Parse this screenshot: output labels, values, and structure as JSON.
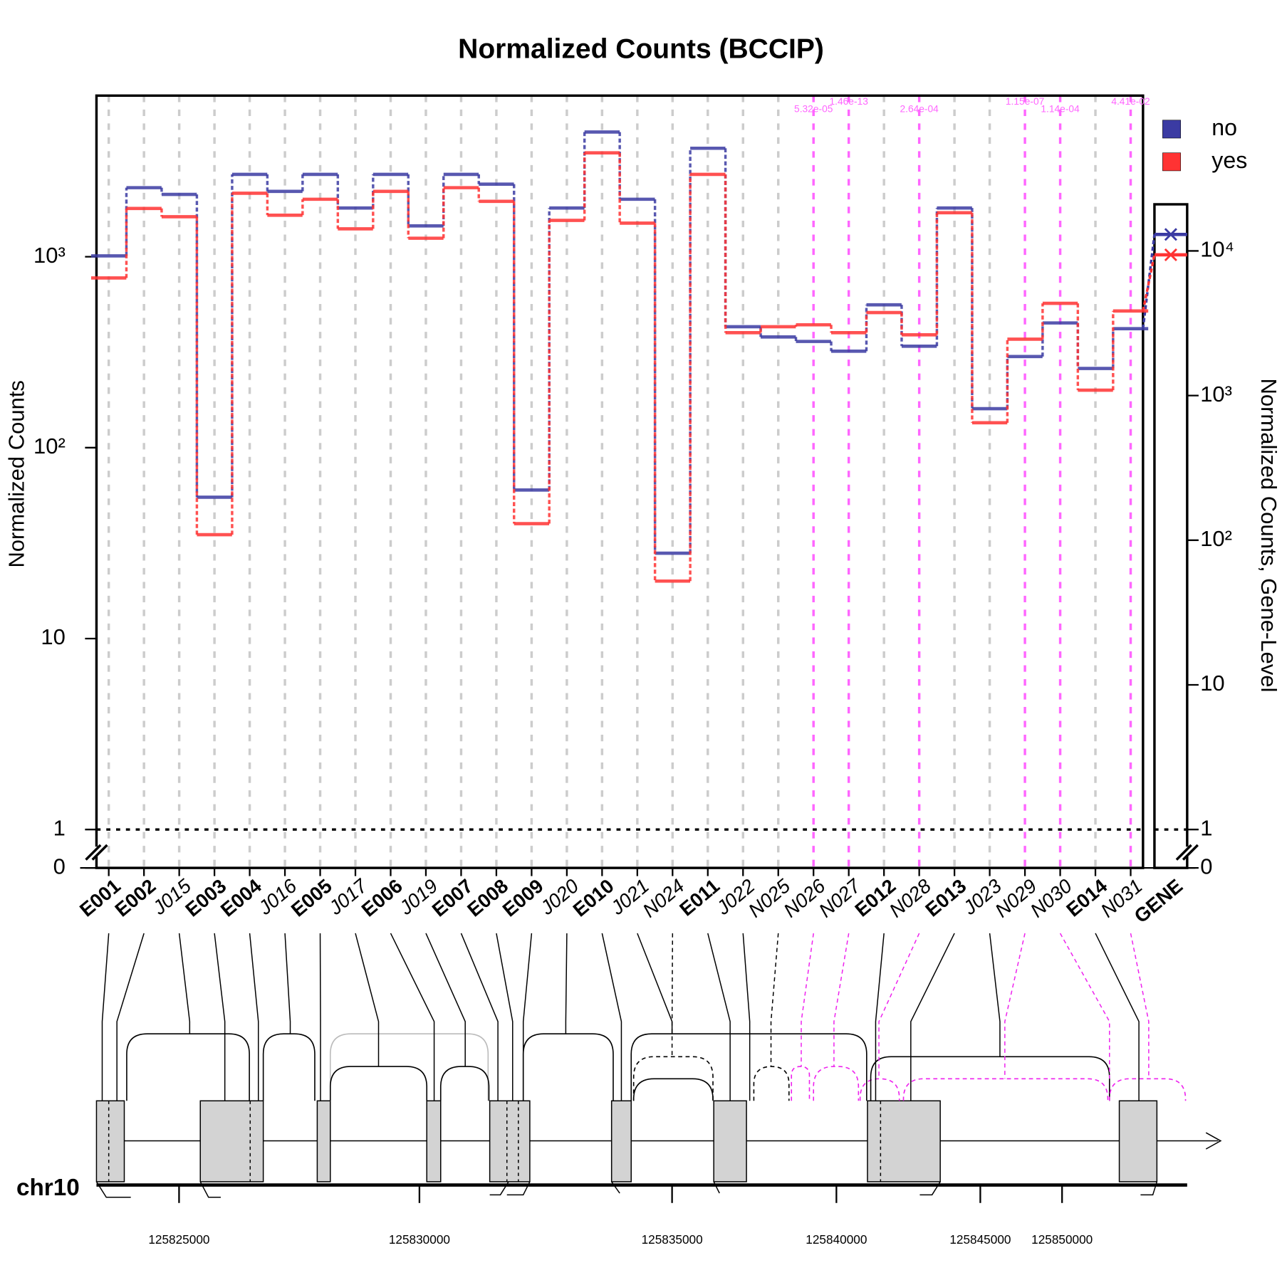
{
  "chart_data": {
    "type": "step",
    "title": "Normalized Counts (BCCIP)",
    "y_label": "Normalized Counts",
    "y2_label": "Normalized Counts, Gene-Level",
    "log_scale": true,
    "grid": true,
    "legend": "topright",
    "categories": [
      "E001",
      "E002",
      "J015",
      "E003",
      "E004",
      "J016",
      "E005",
      "J017",
      "E006",
      "J019",
      "E007",
      "E008",
      "E009",
      "J020",
      "E010",
      "J021",
      "N024",
      "E011",
      "J022",
      "N025",
      "N026",
      "N027",
      "E012",
      "N028",
      "E013",
      "J023",
      "N029",
      "N030",
      "E014",
      "N031"
    ],
    "series": [
      {
        "name": "no",
        "color": "#3b3ba3",
        "values": [
          1010,
          2300,
          2120,
          55,
          2700,
          2200,
          2700,
          1800,
          2700,
          1450,
          2700,
          2400,
          60,
          1800,
          4500,
          2000,
          28,
          3700,
          430,
          380,
          360,
          320,
          560,
          340,
          1800,
          160,
          300,
          450,
          260,
          420
        ],
        "gene_value": 13000
      },
      {
        "name": "yes",
        "color": "#ff3333",
        "values": [
          774,
          1790,
          1620,
          35,
          2150,
          1650,
          2000,
          1400,
          2200,
          1250,
          2300,
          1950,
          40,
          1550,
          3500,
          1500,
          20,
          2700,
          400,
          430,
          440,
          400,
          510,
          390,
          1700,
          135,
          370,
          570,
          200,
          520
        ],
        "gene_value": 9400
      }
    ],
    "gene_label": "GENE",
    "ylim": [
      1,
      6980
    ],
    "yticks": [
      0,
      1,
      10,
      {
        "value": 100,
        "label": "10²"
      },
      {
        "value": 1000,
        "label": "10³"
      }
    ],
    "y2lim": [
      1,
      21000
    ],
    "y2ticks": [
      0,
      1,
      10,
      {
        "value": 100,
        "label": "10²"
      },
      {
        "value": 1000,
        "label": "10³"
      },
      {
        "value": 10000,
        "label": "10⁴"
      }
    ],
    "highlight_color": "#ff66ff",
    "pvalues": [
      {
        "category": "N026",
        "label": "5.32e-05"
      },
      {
        "category": "N027",
        "label": "1.46e-13"
      },
      {
        "category": "N028",
        "label": "2.64e-04"
      },
      {
        "category": "N029",
        "label": "1.15e-07"
      },
      {
        "category": "N030",
        "label": "1.14e-04"
      },
      {
        "category": "N031",
        "label": "4.41e-02"
      }
    ],
    "chromosome": "chr10",
    "chromosome_ticks": [
      125825000,
      125830000,
      125835000,
      125840000,
      125845000,
      125850000
    ]
  }
}
